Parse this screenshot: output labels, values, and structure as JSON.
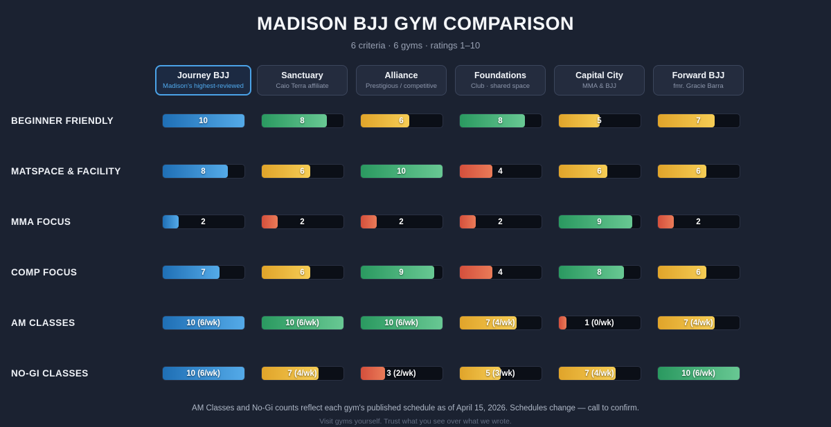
{
  "chart_data": {
    "type": "bar",
    "title": "MADISON BJJ GYM COMPARISON",
    "subtitle": "6 criteria · 6 gyms · ratings 1–10",
    "value_range": [
      1,
      10
    ],
    "grid": false,
    "legend": "none",
    "categories": [
      "BEGINNER FRIENDLY",
      "MATSPACE & FACILITY",
      "MMA FOCUS",
      "COMP FOCUS",
      "AM CLASSES",
      "NO-GI CLASSES"
    ],
    "series": [
      {
        "name": "Journey BJJ",
        "tagline": "Madison's highest-reviewed",
        "highlighted": true,
        "values": [
          10,
          8,
          2,
          7,
          10,
          10
        ],
        "labels": [
          "10",
          "8",
          "2",
          "7",
          "10 (6/wk)",
          "10 (6/wk)"
        ],
        "colors": [
          "blue",
          "blue",
          "blue",
          "blue",
          "blue",
          "blue"
        ]
      },
      {
        "name": "Sanctuary",
        "tagline": "Caio Terra affiliate",
        "highlighted": false,
        "values": [
          8,
          6,
          2,
          6,
          10,
          7
        ],
        "labels": [
          "8",
          "6",
          "2",
          "6",
          "10 (6/wk)",
          "7 (4/wk)"
        ],
        "colors": [
          "green",
          "yellow",
          "red",
          "yellow",
          "green",
          "yellow"
        ]
      },
      {
        "name": "Alliance",
        "tagline": "Prestigious / competitive",
        "highlighted": false,
        "values": [
          6,
          10,
          2,
          9,
          10,
          3
        ],
        "labels": [
          "6",
          "10",
          "2",
          "9",
          "10 (6/wk)",
          "3 (2/wk)"
        ],
        "colors": [
          "yellow",
          "green",
          "red",
          "green",
          "green",
          "red"
        ]
      },
      {
        "name": "Foundations",
        "tagline": "Club · shared space",
        "highlighted": false,
        "values": [
          8,
          4,
          2,
          4,
          7,
          5
        ],
        "labels": [
          "8",
          "4",
          "2",
          "4",
          "7 (4/wk)",
          "5 (3/wk)"
        ],
        "colors": [
          "green",
          "red",
          "red",
          "red",
          "yellow",
          "yellow"
        ]
      },
      {
        "name": "Capital City",
        "tagline": "MMA & BJJ",
        "highlighted": false,
        "values": [
          5,
          6,
          9,
          8,
          1,
          7
        ],
        "labels": [
          "5",
          "6",
          "9",
          "8",
          "1 (0/wk)",
          "7 (4/wk)"
        ],
        "colors": [
          "yellow",
          "yellow",
          "green",
          "green",
          "red",
          "yellow"
        ]
      },
      {
        "name": "Forward BJJ",
        "tagline": "fmr. Gracie Barra",
        "highlighted": false,
        "values": [
          7,
          6,
          2,
          6,
          7,
          10
        ],
        "labels": [
          "7",
          "6",
          "2",
          "6",
          "7 (4/wk)",
          "10 (6/wk)"
        ],
        "colors": [
          "yellow",
          "yellow",
          "red",
          "yellow",
          "yellow",
          "green"
        ]
      }
    ]
  },
  "colors": {
    "background": "#1b2231",
    "track": "#0b0f17",
    "track_border": "#2a3143",
    "highlight": "#4ba3e8",
    "bar_blue": [
      "#1f6fb5",
      "#54aae8"
    ],
    "bar_green": [
      "#2a9960",
      "#68c893"
    ],
    "bar_yellow": [
      "#e0a42a",
      "#f6cd55"
    ],
    "bar_red": [
      "#d44f3c",
      "#ea7b58"
    ]
  },
  "footer": {
    "note": "AM Classes and No-Gi counts reflect each gym's published schedule as of April 15, 2026. Schedules change — call to confirm.",
    "disclaimer": "Visit gyms yourself. Trust what you see over what we wrote."
  }
}
